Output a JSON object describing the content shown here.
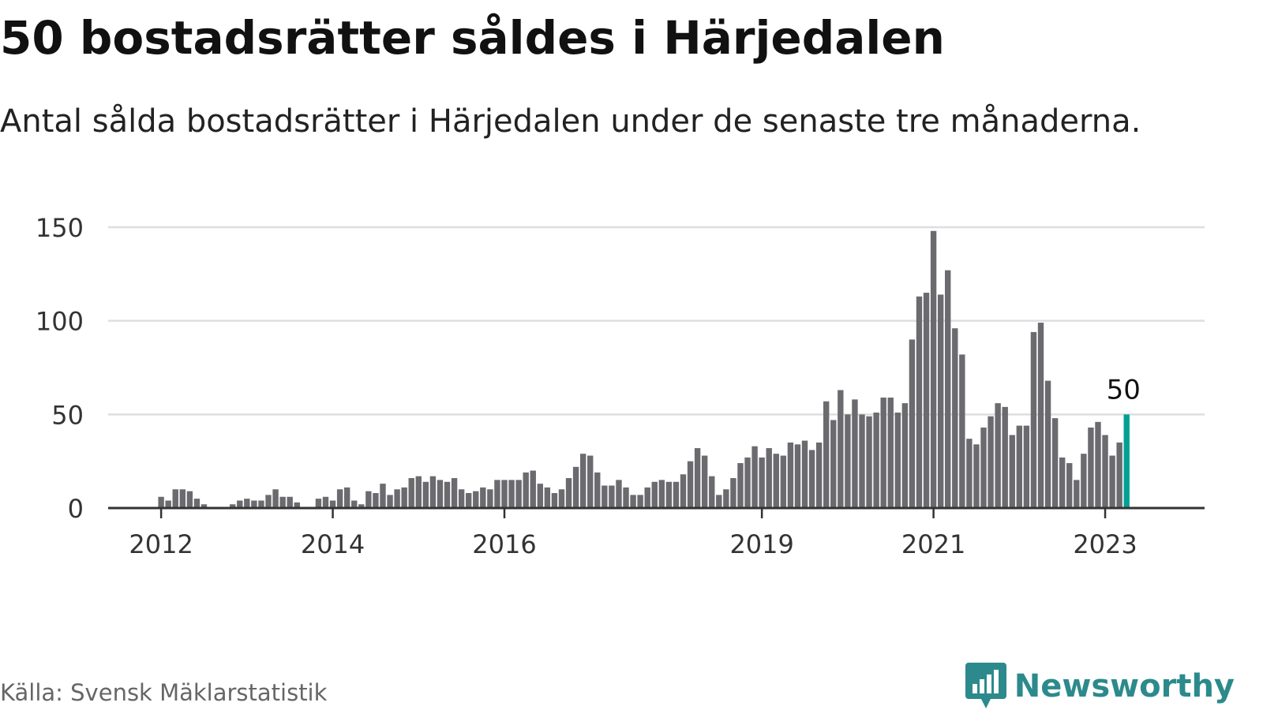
{
  "header": {
    "title": "50 bostadsrätter såldes i Härjedalen",
    "subtitle": "Antal sålda bostadsrätter i Härjedalen under de senaste tre månaderna."
  },
  "footer": {
    "source": "Källa: Svensk Mäklarstatistik",
    "brand": "Newsworthy",
    "brand_icon": "newsworthy-bar-chart-logo-icon"
  },
  "colors": {
    "bar": "#6b6a6f",
    "highlight": "#00a095",
    "grid": "#dedede",
    "axis": "#333333",
    "brand": "#2c8a8c"
  },
  "chart_data": {
    "type": "bar",
    "title": "50 bostadsrätter såldes i Härjedalen",
    "subtitle": "Antal sålda bostadsrätter i Härjedalen under de senaste tre månaderna.",
    "xlabel": "",
    "ylabel": "",
    "ylim": [
      0,
      150
    ],
    "yticks": [
      0,
      50,
      100,
      150
    ],
    "x_tick_labels": [
      "2012",
      "2014",
      "2016",
      "2019",
      "2021",
      "2023"
    ],
    "x_tick_bar_index": [
      0,
      24,
      48,
      84,
      108,
      132
    ],
    "grid": true,
    "legend": "none",
    "first_bar_offset": 7,
    "highlight_label": "50",
    "values": [
      6,
      4,
      10,
      10,
      9,
      5,
      2,
      0,
      0,
      0,
      2,
      4,
      5,
      4,
      4,
      7,
      10,
      6,
      6,
      3,
      0,
      0,
      5,
      6,
      4,
      10,
      11,
      4,
      2,
      9,
      8,
      13,
      7,
      10,
      11,
      16,
      17,
      14,
      17,
      15,
      14,
      16,
      10,
      8,
      9,
      11,
      10,
      15,
      15,
      15,
      15,
      19,
      20,
      13,
      11,
      8,
      10,
      16,
      22,
      29,
      28,
      19,
      12,
      12,
      15,
      11,
      7,
      7,
      11,
      14,
      15,
      14,
      14,
      18,
      25,
      32,
      28,
      17,
      7,
      10,
      16,
      24,
      27,
      33,
      27,
      32,
      29,
      28,
      35,
      34,
      36,
      31,
      35,
      57,
      47,
      63,
      50,
      58,
      50,
      49,
      51,
      59,
      59,
      51,
      56,
      90,
      113,
      115,
      148,
      114,
      127,
      96,
      82,
      37,
      34,
      43,
      49,
      56,
      54,
      39,
      44,
      44,
      94,
      99,
      68,
      48,
      27,
      24,
      15,
      29,
      43,
      46,
      39,
      28,
      35,
      50
    ]
  }
}
